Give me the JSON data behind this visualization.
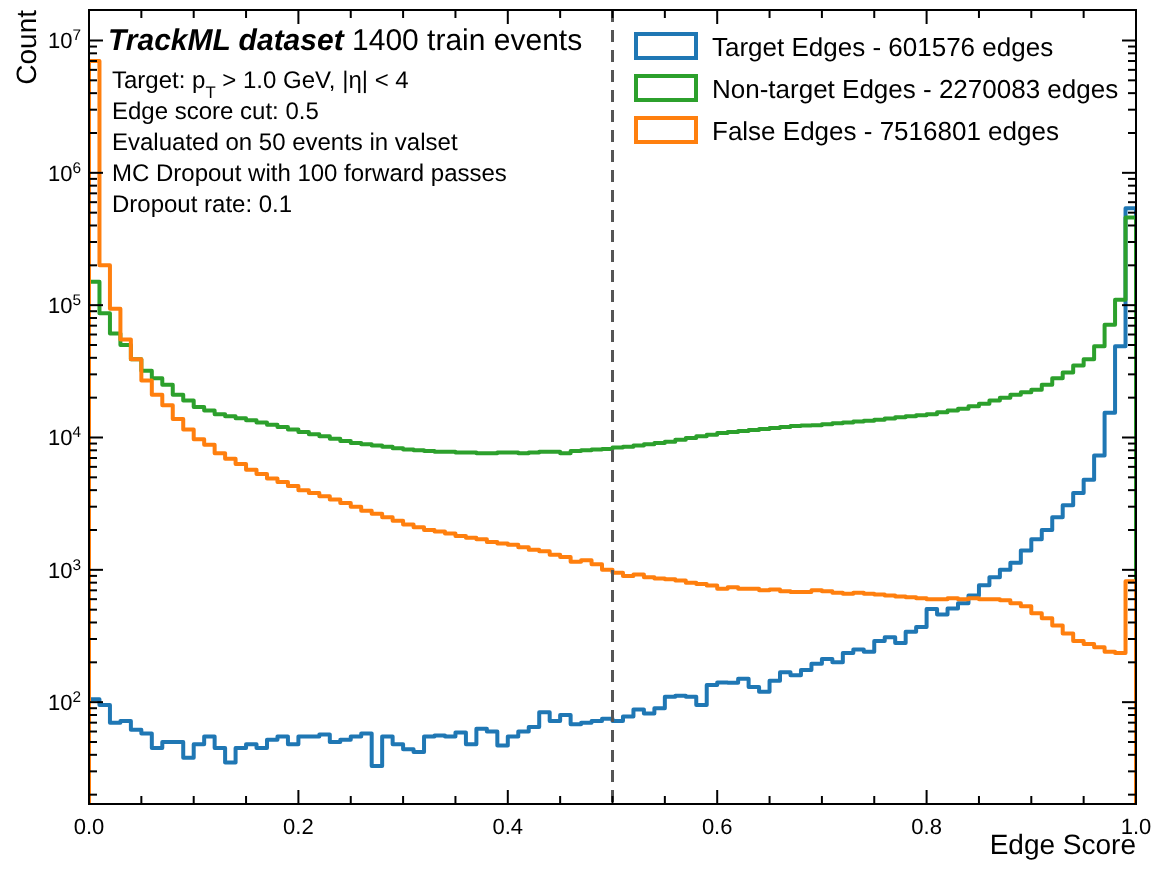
{
  "chart_data": {
    "type": "histogram",
    "title": "TrackML dataset",
    "subtitle": "1400 train events",
    "xlabel": "Edge Score",
    "ylabel": "Count",
    "annotations": [
      "Target: p$_{T}$ > 1.0 GeV, |η| < 4",
      "Edge score cut: 0.5",
      "Evaluated on 50 events in valset",
      "MC Dropout with 100 forward passes",
      "Dropout rate: 0.1"
    ],
    "bins": [
      0,
      0.01,
      0.02,
      0.03,
      0.04,
      0.05,
      0.06,
      0.07,
      0.08,
      0.09,
      0.1,
      0.11,
      0.12,
      0.13,
      0.14,
      0.15,
      0.16,
      0.17,
      0.18,
      0.19,
      0.2,
      0.21,
      0.22,
      0.23,
      0.24,
      0.25,
      0.26,
      0.27,
      0.28,
      0.29,
      0.3,
      0.31,
      0.32,
      0.33,
      0.34,
      0.35,
      0.36,
      0.37,
      0.38,
      0.39,
      0.4,
      0.41,
      0.42,
      0.43,
      0.44,
      0.45,
      0.46,
      0.47,
      0.48,
      0.49,
      0.5,
      0.51,
      0.52,
      0.53,
      0.54,
      0.55,
      0.56,
      0.57,
      0.58,
      0.59,
      0.6,
      0.61,
      0.62,
      0.63,
      0.64,
      0.65,
      0.66,
      0.67,
      0.68,
      0.69,
      0.7,
      0.71,
      0.72,
      0.73,
      0.74,
      0.75,
      0.76,
      0.77,
      0.78,
      0.79,
      0.8,
      0.81,
      0.82,
      0.83,
      0.84,
      0.85,
      0.86,
      0.87,
      0.88,
      0.89,
      0.9,
      0.91,
      0.92,
      0.93,
      0.94,
      0.95,
      0.96,
      0.97,
      0.98,
      0.99,
      1
    ],
    "series": [
      {
        "name": "Target Edges - 601576 edges",
        "color": "#1f77b4",
        "values": [
          105,
          95,
          70,
          72,
          62,
          58,
          45,
          50,
          50,
          38,
          48,
          55,
          45,
          35,
          45,
          48,
          45,
          52,
          55,
          48,
          55,
          55,
          57,
          50,
          52,
          55,
          58,
          33,
          55,
          48,
          44,
          42,
          55,
          56,
          55,
          59,
          48,
          63,
          60,
          47,
          55,
          60,
          65,
          84,
          72,
          80,
          68,
          70,
          72,
          75,
          72,
          78,
          88,
          82,
          90,
          110,
          112,
          110,
          95,
          135,
          141,
          140,
          150,
          130,
          120,
          145,
          168,
          160,
          175,
          195,
          212,
          200,
          235,
          250,
          240,
          290,
          310,
          280,
          340,
          370,
          506,
          460,
          510,
          560,
          640,
          766,
          880,
          1000,
          1130,
          1400,
          1700,
          2000,
          2500,
          3070,
          3800,
          4800,
          7300,
          15400,
          49000,
          540000
        ]
      },
      {
        "name": "Non-target Edges - 2270083 edges",
        "color": "#2ca02c",
        "values": [
          150000,
          87000,
          61000,
          50000,
          39000,
          32000,
          28000,
          25000,
          21000,
          19000,
          17000,
          16000,
          15000,
          14500,
          14000,
          13500,
          13000,
          12500,
          12000,
          11500,
          11000,
          10600,
          10200,
          9800,
          9400,
          9100,
          8900,
          8700,
          8500,
          8300,
          8100,
          8000,
          7900,
          7800,
          7800,
          7700,
          7700,
          7600,
          7600,
          7700,
          7700,
          7600,
          7700,
          7800,
          7800,
          7600,
          7900,
          8000,
          8100,
          8200,
          8400,
          8500,
          8700,
          8900,
          9100,
          9300,
          9600,
          9900,
          10200,
          10500,
          10800,
          11000,
          11200,
          11400,
          11600,
          11800,
          12000,
          12200,
          12300,
          12400,
          12600,
          12800,
          13000,
          13200,
          13400,
          13600,
          13900,
          14200,
          14500,
          14700,
          15000,
          15500,
          16000,
          16500,
          17200,
          18000,
          19000,
          20000,
          21000,
          22000,
          23000,
          25000,
          28000,
          31000,
          35000,
          39000,
          49000,
          71000,
          110000,
          460000
        ]
      },
      {
        "name": "False Edges - 7516801 edges",
        "color": "#ff7f0e",
        "values": [
          7000000,
          200000,
          94000,
          55000,
          39000,
          27000,
          21000,
          17500,
          13800,
          11500,
          9700,
          8800,
          7600,
          6900,
          6300,
          5700,
          5300,
          4900,
          4600,
          4300,
          4000,
          3800,
          3600,
          3400,
          3200,
          3000,
          2800,
          2650,
          2500,
          2350,
          2200,
          2100,
          2000,
          1950,
          1880,
          1800,
          1750,
          1700,
          1620,
          1580,
          1550,
          1480,
          1420,
          1380,
          1300,
          1250,
          1150,
          1180,
          1100,
          1000,
          950,
          900,
          920,
          880,
          860,
          850,
          830,
          800,
          780,
          760,
          720,
          740,
          720,
          720,
          700,
          710,
          690,
          680,
          680,
          700,
          690,
          670,
          660,
          670,
          660,
          650,
          640,
          630,
          620,
          610,
          600,
          600,
          610,
          600,
          610,
          600,
          600,
          590,
          560,
          530,
          470,
          430,
          380,
          330,
          290,
          275,
          260,
          240,
          235,
          820
        ]
      }
    ],
    "xlim": [
      0,
      1
    ],
    "xticks": [
      {
        "value": 0,
        "label": "0.0"
      },
      {
        "value": 0.05,
        "label": null
      },
      {
        "value": 0.1,
        "label": null
      },
      {
        "value": 0.15,
        "label": null
      },
      {
        "value": 0.2,
        "label": "0.2"
      },
      {
        "value": 0.25,
        "label": null
      },
      {
        "value": 0.3,
        "label": null
      },
      {
        "value": 0.35,
        "label": null
      },
      {
        "value": 0.4,
        "label": "0.4"
      },
      {
        "value": 0.45,
        "label": null
      },
      {
        "value": 0.5,
        "label": null
      },
      {
        "value": 0.55,
        "label": null
      },
      {
        "value": 0.6,
        "label": "0.6"
      },
      {
        "value": 0.65,
        "label": null
      },
      {
        "value": 0.7,
        "label": null
      },
      {
        "value": 0.75,
        "label": null
      },
      {
        "value": 0.8,
        "label": "0.8"
      },
      {
        "value": 0.85,
        "label": null
      },
      {
        "value": 0.9,
        "label": null
      },
      {
        "value": 0.95,
        "label": null
      },
      {
        "value": 1,
        "label": "1.0"
      }
    ],
    "ylim": [
      17,
      17000000
    ],
    "log": true,
    "yticks": [
      {
        "value": 20,
        "label": null
      },
      {
        "value": 30,
        "label": null
      },
      {
        "value": 40,
        "label": null
      },
      {
        "value": 50,
        "label": null
      },
      {
        "value": 60,
        "label": null
      },
      {
        "value": 70,
        "label": null
      },
      {
        "value": 80,
        "label": null
      },
      {
        "value": 90,
        "label": null
      },
      {
        "value": 100,
        "label": "10$^{2}$"
      },
      {
        "value": 200,
        "label": null
      },
      {
        "value": 300,
        "label": null
      },
      {
        "value": 400,
        "label": null
      },
      {
        "value": 500,
        "label": null
      },
      {
        "value": 600,
        "label": null
      },
      {
        "value": 700,
        "label": null
      },
      {
        "value": 800,
        "label": null
      },
      {
        "value": 900,
        "label": null
      },
      {
        "value": 1000,
        "label": "10$^{3}$"
      },
      {
        "value": 2000,
        "label": null
      },
      {
        "value": 3000,
        "label": null
      },
      {
        "value": 4000,
        "label": null
      },
      {
        "value": 5000,
        "label": null
      },
      {
        "value": 6000,
        "label": null
      },
      {
        "value": 7000,
        "label": null
      },
      {
        "value": 8000,
        "label": null
      },
      {
        "value": 9000,
        "label": null
      },
      {
        "value": 10000,
        "label": "10$^{4}$"
      },
      {
        "value": 20000,
        "label": null
      },
      {
        "value": 30000,
        "label": null
      },
      {
        "value": 40000,
        "label": null
      },
      {
        "value": 50000,
        "label": null
      },
      {
        "value": 60000,
        "label": null
      },
      {
        "value": 70000,
        "label": null
      },
      {
        "value": 80000,
        "label": null
      },
      {
        "value": 90000,
        "label": null
      },
      {
        "value": 100000,
        "label": "10$^{5}$"
      },
      {
        "value": 200000,
        "label": null
      },
      {
        "value": 300000,
        "label": null
      },
      {
        "value": 400000,
        "label": null
      },
      {
        "value": 500000,
        "label": null
      },
      {
        "value": 600000,
        "label": null
      },
      {
        "value": 700000,
        "label": null
      },
      {
        "value": 800000,
        "label": null
      },
      {
        "value": 900000,
        "label": null
      },
      {
        "value": 1000000,
        "label": "10$^{6}$"
      },
      {
        "value": 2000000,
        "label": null
      },
      {
        "value": 3000000,
        "label": null
      },
      {
        "value": 4000000,
        "label": null
      },
      {
        "value": 5000000,
        "label": null
      },
      {
        "value": 6000000,
        "label": null
      },
      {
        "value": 7000000,
        "label": null
      },
      {
        "value": 8000000,
        "label": null
      },
      {
        "value": 9000000,
        "label": null
      },
      {
        "value": 10000000,
        "label": "10$^{7}$"
      }
    ],
    "ref_lines": [
      {
        "axis": "x",
        "value": 0.5,
        "color": "#555555",
        "line_style": "dashed"
      }
    ],
    "legend": "top right",
    "grid": false
  }
}
